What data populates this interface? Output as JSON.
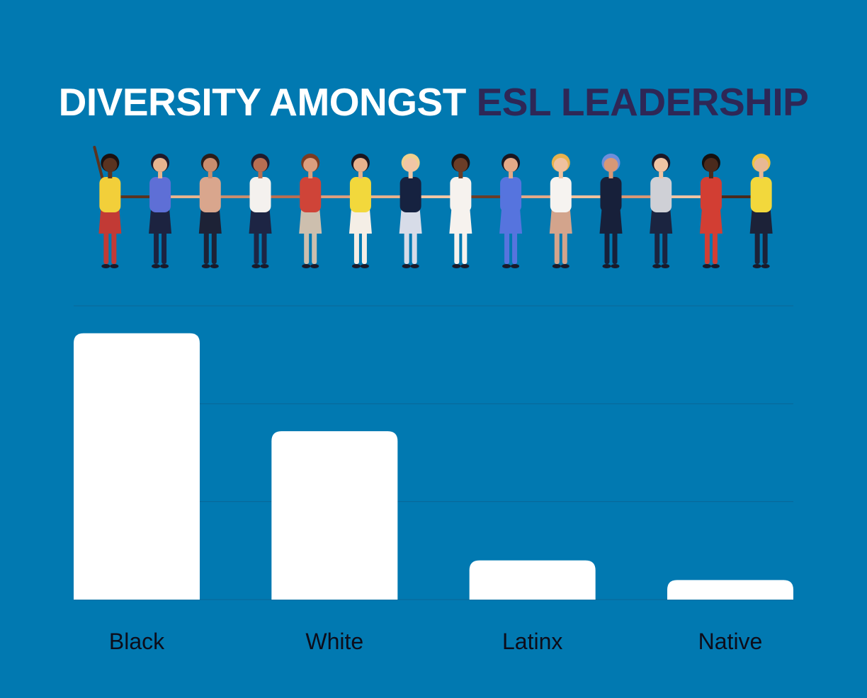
{
  "title": {
    "part1": "DIVERSITY AMONGST",
    "part2": "ESL LEADERSHIP"
  },
  "colors": {
    "background": "#0179b1",
    "bar": "#ffffff",
    "title_primary": "#ffffff",
    "title_accent": "#2e2756",
    "gridline": "#0a6796"
  },
  "illustration": {
    "icon": "diverse-people-holding-hands-illustration",
    "figures": [
      {
        "skin": "#5a3320",
        "hair": "#1a1010",
        "top": "#f2cf3a",
        "bottom": "#c23a35",
        "arm_up": true
      },
      {
        "skin": "#e7b48f",
        "hair": "#1f1a2b",
        "top": "#5e6fd6",
        "bottom": "#1c2340"
      },
      {
        "skin": "#c98d6e",
        "hair": "#2a1d1a",
        "top": "#d9a68d",
        "bottom": "#1d2236"
      },
      {
        "skin": "#b86e52",
        "hair": "#1f1b2e",
        "top": "#f4f1ee",
        "bottom": "#1d2544"
      },
      {
        "skin": "#dc9e7e",
        "hair": "#7a3b22",
        "top": "#cf4438",
        "bottom": "#cdbfae"
      },
      {
        "skin": "#e6b18d",
        "hair": "#1a1620",
        "top": "#f2d83c",
        "bottom": "#f4eee6"
      },
      {
        "skin": "#f1c6a5",
        "hair": "#f0d08e",
        "top": "#162240",
        "bottom": "#d7dce8"
      },
      {
        "skin": "#6b3d27",
        "hair": "#1b1212",
        "top": "#f6f2ee",
        "bottom": "#f6f2ee"
      },
      {
        "skin": "#e3a988",
        "hair": "#1a1620",
        "top": "#5674de",
        "bottom": "#5674de"
      },
      {
        "skin": "#f0c19e",
        "hair": "#e7b24e",
        "top": "#f6f3f0",
        "bottom": "#d3a48c"
      },
      {
        "skin": "#d89876",
        "hair": "#6e8edb",
        "top": "#17203a",
        "bottom": "#17203a"
      },
      {
        "skin": "#efc4a4",
        "hair": "#1b1827",
        "top": "#cfd0d6",
        "bottom": "#1b2440"
      },
      {
        "skin": "#4a2a1c",
        "hair": "#141010",
        "top": "#d23e33",
        "bottom": "#d23e33"
      },
      {
        "skin": "#e8b893",
        "hair": "#f1c33f",
        "top": "#f2d83c",
        "bottom": "#1c2238"
      }
    ]
  },
  "chart_data": {
    "type": "bar",
    "categories": [
      "Black",
      "White",
      "Latinx",
      "Native"
    ],
    "values": [
      68,
      43,
      10,
      5
    ],
    "ylim": [
      0,
      75
    ],
    "gridlines": [
      0,
      25,
      50,
      75
    ],
    "grid": true,
    "legend": "none",
    "xlabel": "",
    "ylabel": ""
  }
}
